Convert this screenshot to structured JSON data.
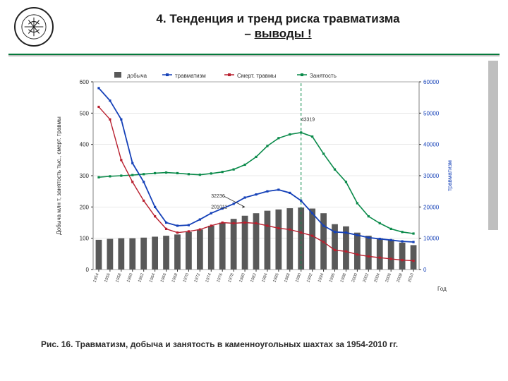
{
  "header": {
    "number": "4.",
    "title": "Тенденция и тренд риска травматизма",
    "subtitle_prefix": "– ",
    "subtitle_ul": "выводы !"
  },
  "caption": "Рис. 16. Травматизм, добыча и занятость в каменноугольных шахтах за  1954-2010 гг.",
  "chart": {
    "type": "line+bar",
    "background_color": "#ffffff",
    "border_color": "#808080",
    "grid_color": "#d0d0d0",
    "left_axis": {
      "label": "Добыча млн т, занятость тыс., смерт. травмы",
      "label_fontsize": 8,
      "color_primary": "#2b2b2b",
      "color_accent": "#0a6a3a",
      "min": 0,
      "max": 600,
      "ticks": [
        0,
        100,
        200,
        300,
        400,
        500,
        600
      ]
    },
    "right_axis": {
      "label": "травматизм",
      "label_fontsize": 8,
      "color": "#1541b8",
      "min": 0,
      "max": 60000,
      "ticks": [
        0,
        10000,
        20000,
        30000,
        40000,
        50000,
        60000
      ]
    },
    "x_axis": {
      "label": "Год",
      "label_fontsize": 8,
      "tick_fontsize": 6,
      "ticks": [
        "1954",
        "1956",
        "1958",
        "1960",
        "1962",
        "1964",
        "1966",
        "1968",
        "1970",
        "1972",
        "1974",
        "1976",
        "1978",
        "1980",
        "1982",
        "1984",
        "1986",
        "1988",
        "1990",
        "1992",
        "1994",
        "1996",
        "1998",
        "2000",
        "2002",
        "2004",
        "2006",
        "2008",
        "2010"
      ]
    },
    "series": {
      "bars": {
        "label": "добыча",
        "color": "#595959",
        "width": 0.55,
        "values": [
          95,
          98,
          100,
          100,
          102,
          105,
          108,
          112,
          120,
          128,
          140,
          150,
          162,
          172,
          180,
          188,
          192,
          196,
          198,
          195,
          180,
          145,
          138,
          118,
          108,
          100,
          96,
          86,
          78
        ]
      },
      "traumatism": {
        "label": "травматизм",
        "axis": "right",
        "color": "#1541b8",
        "width": 1.8,
        "values": [
          58000,
          54000,
          48000,
          34000,
          28000,
          20000,
          15000,
          14000,
          14200,
          16000,
          18000,
          19500,
          21000,
          23000,
          24000,
          25000,
          25500,
          24500,
          22000,
          18000,
          14000,
          12000,
          11800,
          11000,
          10200,
          9800,
          9400,
          9000,
          8800
        ]
      },
      "fatal": {
        "label": "Смерт. травмы",
        "axis": "left",
        "color": "#b81f2e",
        "width": 1.4,
        "values": [
          520,
          480,
          350,
          280,
          220,
          170,
          130,
          118,
          122,
          128,
          140,
          150,
          148,
          150,
          148,
          140,
          132,
          128,
          118,
          108,
          88,
          62,
          58,
          48,
          42,
          38,
          34,
          30,
          28
        ]
      },
      "employment": {
        "label": "Занятость",
        "axis": "left",
        "color": "#0a8a4a",
        "width": 1.6,
        "values": [
          295,
          298,
          300,
          302,
          305,
          308,
          310,
          308,
          305,
          303,
          307,
          312,
          320,
          335,
          360,
          395,
          420,
          432,
          438,
          425,
          370,
          320,
          280,
          212,
          170,
          148,
          130,
          120,
          115
        ]
      }
    },
    "legend": {
      "fontsize": 8,
      "y": 10,
      "items": [
        {
          "sym": "bar",
          "color": "#595959",
          "text": "добыча"
        },
        {
          "sym": "line",
          "color": "#1541b8",
          "text": "травматизм"
        },
        {
          "sym": "line",
          "color": "#b81f2e",
          "text": "Смерт. травмы"
        },
        {
          "sym": "line",
          "color": "#0a8a4a",
          "text": "Занятость"
        }
      ]
    },
    "annotations": [
      {
        "text": "32236",
        "x_index": 10,
        "y_value": 230,
        "fontsize": 7,
        "color": "#2b2b2b",
        "arrow_to": {
          "x_index": 13,
          "y_value": 200
        }
      },
      {
        "text": "201011",
        "x_index": 10,
        "y_value": 195,
        "fontsize": 7,
        "color": "#2b2b2b"
      },
      {
        "text": "43319",
        "x_index": 18,
        "y_value": 475,
        "fontsize": 7,
        "color": "#2b2b2b"
      }
    ],
    "ref_line": {
      "x_index": 18,
      "color": "#0a8a4a",
      "dash": "4 3"
    }
  }
}
